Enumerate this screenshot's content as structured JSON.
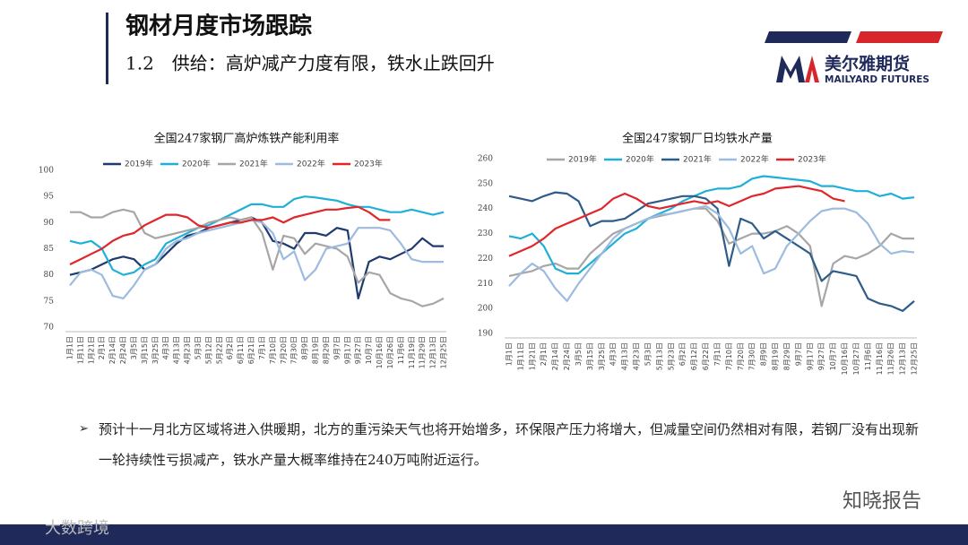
{
  "header": {
    "title": "钢材月度市场跟踪",
    "subtitle": "1.2　供给：高炉减产力度有限，铁水止跌回升"
  },
  "logo": {
    "name_cn": "美尔雅期货",
    "name_en": "MAILYARD FUTURES"
  },
  "bullet": "预计十一月北方区域将进入供暖期，北方的重污染天气也将开始增多，环保限产压力将增大，但减量空间仍然相对有限，若钢厂没有出现新一轮持续性亏损减产，铁水产量大概率维持在240万吨附近运行。",
  "watermarks": [
    "知晓报告",
    "大数跨境"
  ],
  "chart_data": [
    {
      "type": "line",
      "title": "全国247家钢厂高炉炼铁产能利用率",
      "categories": [
        "1月1日",
        "1月11日",
        "1月21日",
        "2月1日",
        "2月14日",
        "2月24日",
        "3月5日",
        "3月15日",
        "3月25日",
        "4月3日",
        "4月13日",
        "4月23日",
        "5月3日",
        "5月12日",
        "5月22日",
        "6月2日",
        "6月11日",
        "6月21日",
        "7月1日",
        "7月10日",
        "7月20日",
        "7月30日",
        "8月9日",
        "8月19日",
        "8月29日",
        "9月7日",
        "9月17日",
        "9月27日",
        "10月7日",
        "10月16日",
        "10月26日",
        "11月6日",
        "11月19日",
        "11月29日",
        "12月13日",
        "12月25日"
      ],
      "ylim": [
        70,
        100
      ],
      "yticks": [
        70,
        75,
        80,
        85,
        90,
        95,
        100
      ],
      "grid": false,
      "series": [
        {
          "name": "2019年",
          "color": "#1f3a6e",
          "values": [
            80,
            80.5,
            81,
            82,
            83,
            83.5,
            83,
            81,
            82,
            84,
            86,
            87.5,
            88,
            89,
            89.5,
            90,
            90.5,
            91,
            90,
            86.5,
            86,
            85,
            88,
            88,
            87.5,
            89,
            88.5,
            75.5,
            82.5,
            83.5,
            83,
            84,
            85,
            87,
            85.5,
            85.5
          ]
        },
        {
          "name": "2020年",
          "color": "#1fb0d8",
          "values": [
            86.5,
            86,
            86.5,
            85,
            81,
            80,
            80.5,
            82,
            83,
            86,
            87,
            88,
            89,
            89.5,
            90.5,
            91.5,
            92.5,
            93.5,
            93.5,
            93,
            93,
            94.5,
            95,
            94.8,
            94.5,
            94.2,
            93.5,
            93,
            93,
            92.5,
            92,
            92,
            92.5,
            92,
            91.5,
            92
          ]
        },
        {
          "name": "2021年",
          "color": "#a6a6a6",
          "values": [
            92,
            92,
            91,
            91,
            92,
            92.5,
            92,
            88,
            87,
            87.5,
            88,
            88.5,
            89,
            90,
            90.5,
            91,
            90.5,
            91,
            88,
            81,
            87.5,
            87,
            84,
            86,
            85.5,
            85,
            83.5,
            78.5,
            80.5,
            80,
            76.5,
            75.5,
            75,
            74,
            74.5,
            75.5
          ]
        },
        {
          "name": "2022年",
          "color": "#9dbbdf",
          "values": [
            78,
            80.5,
            81,
            80,
            76,
            75.5,
            78,
            81,
            82,
            85,
            86.5,
            87,
            88,
            88.5,
            89,
            89.5,
            90,
            90.5,
            90,
            88,
            83,
            84.5,
            79,
            81,
            85,
            85.5,
            86,
            89,
            89,
            89,
            88.5,
            86,
            83,
            82.5,
            82.5,
            82.5
          ]
        },
        {
          "name": "2023年",
          "color": "#e0262a",
          "values": [
            82,
            83,
            84,
            85,
            86.5,
            87.5,
            88,
            89.5,
            90.5,
            91.5,
            91.5,
            91,
            89.5,
            89,
            89.5,
            90,
            90,
            90.5,
            90.5,
            91,
            90,
            91,
            91.5,
            92,
            92.5,
            92.5,
            92.8,
            93,
            92,
            90.5,
            90.5,
            null,
            null,
            null,
            null,
            null
          ]
        }
      ]
    },
    {
      "type": "line",
      "title": "全国247家钢厂日均铁水产量",
      "categories": [
        "1月1日",
        "1月11日",
        "1月21日",
        "2月1日",
        "2月14日",
        "2月24日",
        "3月5日",
        "3月15日",
        "3月25日",
        "4月3日",
        "4月13日",
        "4月23日",
        "5月3日",
        "5月13日",
        "5月23日",
        "6月2日",
        "6月12日",
        "6月22日",
        "7月1日",
        "7月10日",
        "7月20日",
        "7月30日",
        "8月9日",
        "8月19日",
        "8月29日",
        "9月7日",
        "9月17日",
        "9月27日",
        "10月7日",
        "10月16日",
        "10月27日",
        "11月6日",
        "11月16日",
        "11月26日",
        "12月13日",
        "12月25日"
      ],
      "ylim": [
        190,
        260
      ],
      "yticks": [
        190,
        200,
        210,
        220,
        230,
        240,
        250,
        260
      ],
      "grid": false,
      "series": [
        {
          "name": "2019年",
          "color": "#a6a6a6",
          "values": [
            213,
            214,
            215,
            217,
            218,
            216,
            216,
            222,
            226,
            230,
            232,
            234,
            236,
            237,
            238,
            239,
            240,
            240,
            235,
            226,
            228,
            230,
            230,
            231,
            233,
            230,
            225,
            201,
            218,
            221,
            220,
            222,
            225,
            230,
            228,
            228
          ]
        },
        {
          "name": "2020年",
          "color": "#1fb0d8",
          "values": [
            229,
            228,
            230,
            225,
            216,
            214,
            214,
            218,
            222,
            226,
            230,
            232,
            236,
            238,
            240,
            243,
            245,
            247,
            248,
            248,
            249,
            252,
            253,
            252.5,
            252,
            251.5,
            251,
            249,
            249,
            248,
            247,
            247,
            245,
            246,
            244,
            244.5
          ]
        },
        {
          "name": "2021年",
          "color": "#2e5c8a",
          "values": [
            245,
            244,
            243,
            245,
            246.5,
            246,
            243,
            233,
            235,
            235,
            236,
            239,
            242,
            243,
            244,
            245,
            245,
            244,
            240,
            217,
            236,
            234,
            228,
            231,
            228,
            225,
            222,
            211,
            215,
            214,
            213,
            204,
            202,
            201,
            199,
            203
          ]
        },
        {
          "name": "2022年",
          "color": "#9dbbdf",
          "values": [
            209,
            214,
            218,
            215,
            208,
            203,
            210,
            216,
            222,
            228,
            232,
            234,
            236,
            237.5,
            238,
            239,
            240,
            241,
            238,
            232,
            222,
            225,
            214,
            216,
            225,
            230,
            235,
            239,
            240,
            240,
            238.5,
            234,
            226,
            222,
            223,
            222.5
          ]
        },
        {
          "name": "2023年",
          "color": "#e0262a",
          "values": [
            221,
            223,
            225,
            228,
            232,
            234,
            236,
            238,
            240,
            244,
            246,
            244,
            241,
            240,
            241,
            242,
            243,
            242,
            243,
            241,
            243,
            245,
            246,
            248,
            248.5,
            249,
            248,
            247,
            244,
            243,
            null,
            null,
            null,
            null,
            null,
            null
          ]
        }
      ]
    }
  ]
}
